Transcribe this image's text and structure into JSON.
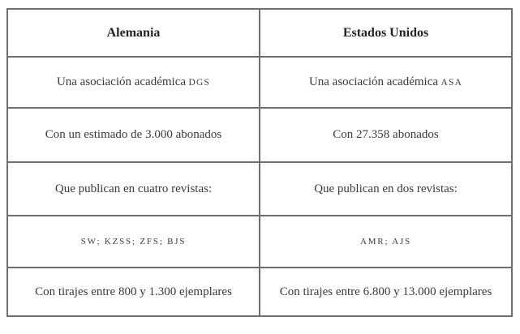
{
  "colors": {
    "border": "#6f6f6f",
    "text": "#3a3a3a",
    "header_text": "#242424",
    "background": "#ffffff"
  },
  "table": {
    "headers": [
      {
        "label": "Alemania"
      },
      {
        "label": "Estados Unidos"
      }
    ],
    "rows": [
      {
        "left": {
          "text": "Una asociación académica",
          "smallcaps": "DGS"
        },
        "right": {
          "text": "Una asociación académica",
          "smallcaps": "ASA"
        }
      },
      {
        "left": {
          "text": "Con un estimado de 3.000 abonados"
        },
        "right": {
          "text": "Con 27.358 abonados"
        }
      },
      {
        "left": {
          "text": "Que publican en cuatro revistas:"
        },
        "right": {
          "text": "Que publican en dos revistas:"
        }
      },
      {
        "left": {
          "smallcaps": "SW; KZSS; ZFS; BJS"
        },
        "right": {
          "smallcaps": "AMR; AJS"
        }
      },
      {
        "left": {
          "text": "Con tirajes entre 800 y 1.300 ejemplares"
        },
        "right": {
          "text": "Con tirajes entre 6.800 y 13.000 ejemplares"
        }
      }
    ]
  }
}
